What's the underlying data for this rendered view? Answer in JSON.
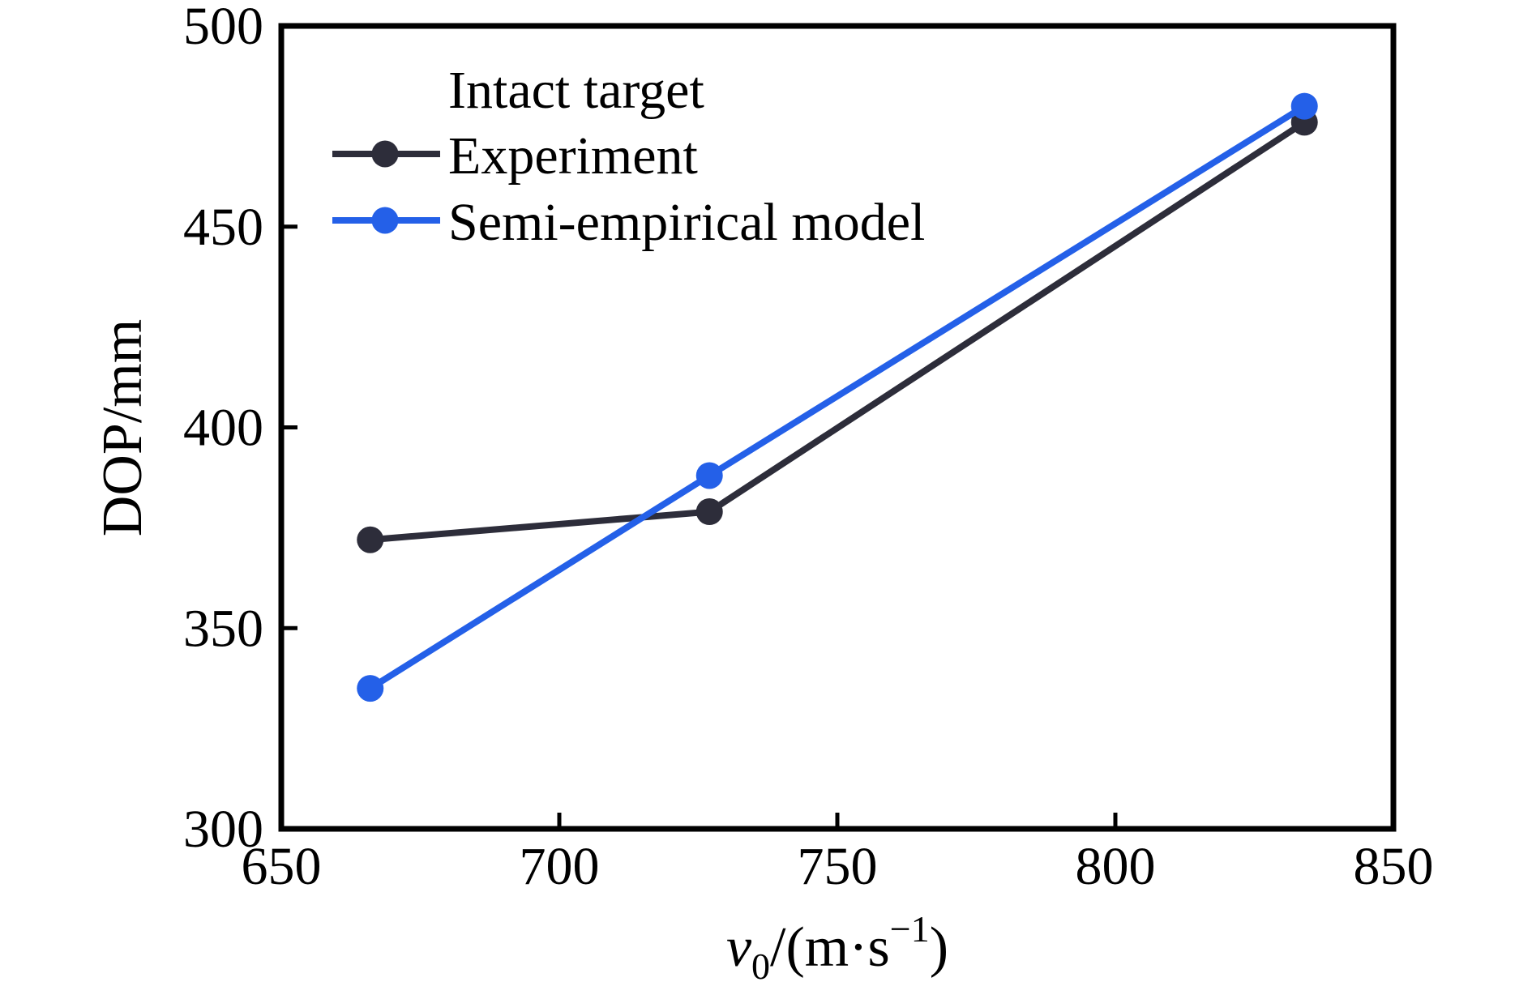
{
  "chart_data": {
    "type": "line",
    "title": "",
    "xlabel_parts": {
      "var": "v",
      "sub": "0",
      "mid": "/(m·s",
      "sup": "−1",
      "end": ")"
    },
    "ylabel": "DOP/mm",
    "xlim": [
      650,
      850
    ],
    "ylim": [
      300,
      500
    ],
    "xticks": [
      650,
      700,
      750,
      800,
      850
    ],
    "yticks": [
      300,
      350,
      400,
      450,
      500
    ],
    "grid": false,
    "legend": {
      "title": "Intact target",
      "position": "upper-left"
    },
    "x": [
      666,
      727,
      834
    ],
    "series": [
      {
        "name": "Experiment",
        "color": "#2d2d3a",
        "marker": "circle",
        "values": [
          372,
          379,
          476
        ]
      },
      {
        "name": "Semi-empirical model",
        "color": "#2460e8",
        "marker": "circle",
        "values": [
          335,
          388,
          480
        ]
      }
    ],
    "frame_color": "#000000",
    "background_color": "#ffffff"
  }
}
